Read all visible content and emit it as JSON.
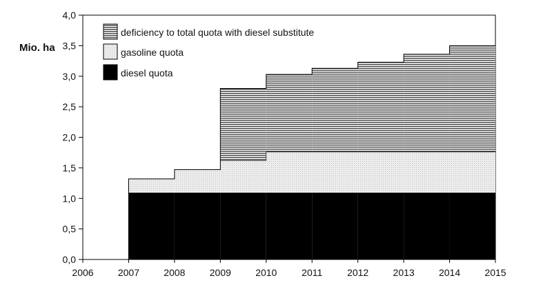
{
  "chart_data": {
    "type": "area",
    "title": "",
    "xlabel": "",
    "ylabel": "Mio. ha",
    "xlim": [
      2006,
      2015
    ],
    "ylim": [
      0,
      4
    ],
    "x_ticks": [
      "2006",
      "2007",
      "2008",
      "2009",
      "2010",
      "2011",
      "2012",
      "2013",
      "2014",
      "2015"
    ],
    "y_ticks": [
      "0,0",
      "0,5",
      "1,0",
      "1,5",
      "2,0",
      "2,5",
      "3,0",
      "3,5",
      "4,0"
    ],
    "step": true,
    "stacked": true,
    "x": [
      2006,
      2007,
      2008,
      2009,
      2010,
      2011,
      2012,
      2013,
      2014
    ],
    "series": [
      {
        "name": "diesel quota",
        "values": [
          0,
          1.09,
          1.09,
          1.09,
          1.09,
          1.09,
          1.09,
          1.09,
          1.09
        ],
        "color": "#000000"
      },
      {
        "name": "gasoline quota",
        "values": [
          0,
          0.23,
          0.38,
          0.53,
          0.67,
          0.67,
          0.67,
          0.67,
          0.67
        ],
        "color": "#e6e6e6"
      },
      {
        "name": "deficiency to total quota with diesel substitute",
        "values": [
          0,
          0,
          0,
          1.18,
          1.27,
          1.37,
          1.47,
          1.6,
          1.74
        ],
        "color": "#8a8a8a"
      }
    ],
    "end_values": {
      "2015": [
        1.09,
        0.67,
        1.86
      ]
    },
    "legend_position": "top-left",
    "grid": false
  }
}
